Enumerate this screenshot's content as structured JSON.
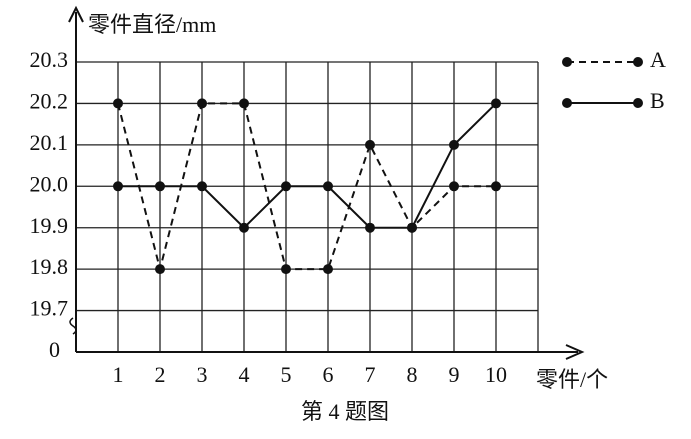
{
  "chart_data": {
    "type": "line",
    "y_label": "零件直径/mm",
    "x_label": "零件/个",
    "caption": "第 4 题图",
    "origin_label": "0",
    "x": [
      1,
      2,
      3,
      4,
      5,
      6,
      7,
      8,
      9,
      10
    ],
    "series": [
      {
        "name": "A",
        "color": "#111111",
        "line_style": "dashed",
        "values": [
          20.2,
          19.8,
          20.2,
          20.2,
          19.8,
          19.8,
          20.1,
          19.9,
          20.0,
          20.0
        ]
      },
      {
        "name": "B",
        "color": "#111111",
        "line_style": "solid",
        "values": [
          20.0,
          20.0,
          20.0,
          19.9,
          20.0,
          20.0,
          19.9,
          19.9,
          20.1,
          20.2
        ]
      }
    ],
    "xlim": [
      0,
      11
    ],
    "xticks": [
      1,
      2,
      3,
      4,
      5,
      6,
      7,
      8,
      9,
      10
    ],
    "ylim": [
      19.6,
      20.3
    ],
    "yticks": [
      19.7,
      19.8,
      19.9,
      {
        "value": 20,
        "label": "20.0"
      },
      20.1,
      20.2,
      20.3
    ],
    "grid": true
  }
}
